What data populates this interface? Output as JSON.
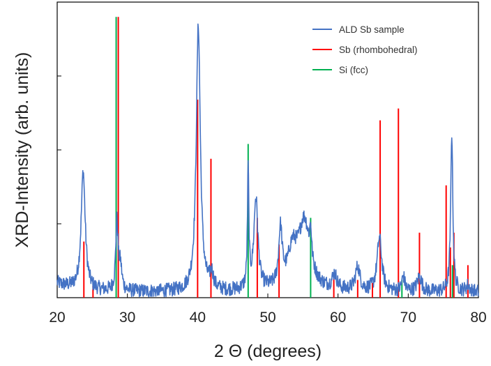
{
  "chart_data": {
    "type": "line",
    "xlabel": "2 Θ (degrees)",
    "ylabel": "XRD-Intensity (arb. units)",
    "xlim": [
      20,
      80
    ],
    "ylim": [
      0,
      100
    ],
    "x_ticks": [
      20,
      30,
      40,
      50,
      60,
      70,
      80
    ],
    "y_gridlines": false,
    "legend_position": "top-right",
    "series": [
      {
        "name": "ALD Sb sample",
        "type": "line",
        "color": "#4472C4",
        "noisy_baseline": 3,
        "peaks": [
          {
            "x": 23.7,
            "h": 40,
            "w": 0.35
          },
          {
            "x": 28.5,
            "h": 23,
            "w": 0.2
          },
          {
            "x": 29.0,
            "h": 8,
            "w": 0.25
          },
          {
            "x": 40.1,
            "h": 90,
            "w": 0.35
          },
          {
            "x": 42.0,
            "h": 5,
            "w": 0.3
          },
          {
            "x": 47.2,
            "h": 40,
            "w": 0.12
          },
          {
            "x": 48.3,
            "h": 31,
            "w": 0.35
          },
          {
            "x": 51.8,
            "h": 19,
            "w": 0.3
          },
          {
            "x": 53.5,
            "h": 12,
            "w": 0.8
          },
          {
            "x": 55.2,
            "h": 23,
            "w": 1.0
          },
          {
            "x": 56.1,
            "h": 10,
            "w": 0.15
          },
          {
            "x": 59.5,
            "h": 5,
            "w": 0.4
          },
          {
            "x": 62.8,
            "h": 8,
            "w": 0.4
          },
          {
            "x": 65.9,
            "h": 18,
            "w": 0.4
          },
          {
            "x": 69.3,
            "h": 5,
            "w": 0.25
          },
          {
            "x": 71.6,
            "h": 5,
            "w": 0.4
          },
          {
            "x": 76.2,
            "h": 54,
            "w": 0.18
          },
          {
            "x": 78.5,
            "h": 2,
            "w": 0.3
          }
        ]
      },
      {
        "name": "Sb (rhombohedral)",
        "type": "stick",
        "color": "#FF0000",
        "x": [
          23.8,
          25.1,
          28.7,
          40.0,
          41.9,
          48.5,
          51.6,
          59.4,
          62.8,
          64.9,
          66.0,
          68.6,
          71.6,
          75.4,
          76.0,
          76.5,
          78.5
        ],
        "y": [
          19,
          4,
          95,
          67,
          47,
          27,
          18,
          8,
          6,
          5,
          60,
          64,
          22,
          38,
          17,
          22,
          11
        ]
      },
      {
        "name": "Si (fcc)",
        "type": "stick",
        "color": "#00B050",
        "x": [
          28.4,
          47.2,
          56.1,
          69.1,
          76.3
        ],
        "y": [
          95,
          52,
          27,
          6,
          11
        ]
      }
    ]
  }
}
